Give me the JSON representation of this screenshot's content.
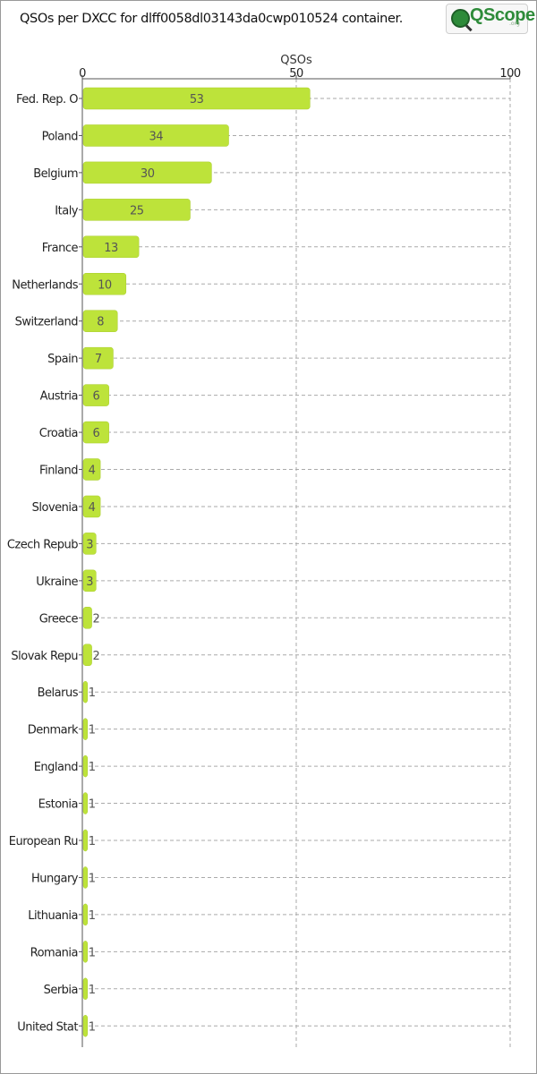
{
  "title": "QSOs per DXCC for dlff0058dl03143da0cwp010524 container.",
  "logo": {
    "text": "QScope",
    "sub": ".org"
  },
  "colors": {
    "bar": "#bde33a",
    "bar_stroke": "#a8cc2c",
    "grid": "#aaaaaa",
    "axis": "#555555"
  },
  "chart_data": {
    "type": "bar",
    "orientation": "horizontal",
    "xlabel": "QSOs",
    "ylabel": "",
    "xlim": [
      0,
      100
    ],
    "xticks": [
      0,
      50,
      100
    ],
    "grid": true,
    "categories": [
      "Fed. Rep. O",
      "Poland",
      "Belgium",
      "Italy",
      "France",
      "Netherlands",
      "Switzerland",
      "Spain",
      "Austria",
      "Croatia",
      "Finland",
      "Slovenia",
      "Czech Repub",
      "Ukraine",
      "Greece",
      "Slovak Repu",
      "Belarus",
      "Denmark",
      "England",
      "Estonia",
      "European Ru",
      "Hungary",
      "Lithuania",
      "Romania",
      "Serbia",
      "United Stat"
    ],
    "values": [
      53,
      34,
      30,
      25,
      13,
      10,
      8,
      7,
      6,
      6,
      4,
      4,
      3,
      3,
      2,
      2,
      1,
      1,
      1,
      1,
      1,
      1,
      1,
      1,
      1,
      1
    ]
  }
}
